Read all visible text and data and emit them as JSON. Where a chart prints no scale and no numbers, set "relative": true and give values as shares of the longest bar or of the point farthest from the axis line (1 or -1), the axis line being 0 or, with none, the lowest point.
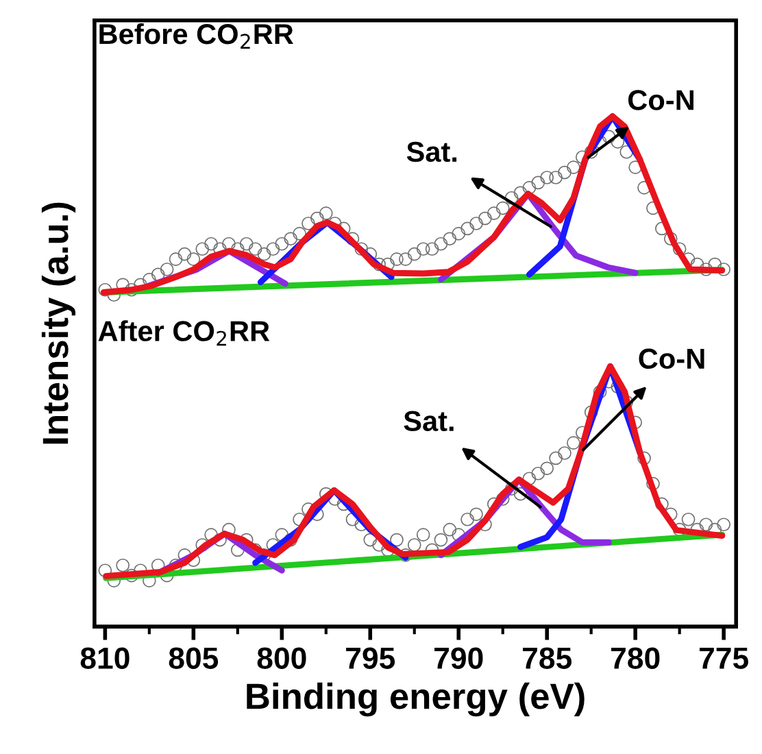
{
  "chart_data": {
    "type": "line",
    "relative": true,
    "xlabel": "Binding energy (eV)",
    "ylabel": "Intensity (a.u.)",
    "xlim": [
      810.6,
      774.3
    ],
    "xticks": [
      810,
      {
        "value": 807.5,
        "label": null
      },
      805,
      {
        "value": 802.5,
        "label": null
      },
      800,
      {
        "value": 797.5,
        "label": null
      },
      795,
      {
        "value": 792.5,
        "label": null
      },
      790,
      {
        "value": 787.5,
        "label": null
      },
      785,
      {
        "value": 782.5,
        "label": null
      },
      780,
      {
        "value": 777.5,
        "label": null
      },
      775
    ],
    "grid": false,
    "legend": false,
    "line_style": "solid",
    "annotations": [
      "Before CO$_{2}$RR",
      "After CO$_{2}$RR",
      {
        "text": "Sat.",
        "x": 784.6,
        "y": 0.78
      },
      {
        "text": "Co-N",
        "x": 782.84,
        "y": 0.915
      },
      {
        "text": "Sat.",
        "x": 785.2,
        "y": 0.23
      },
      {
        "text": "Co-N",
        "x": 783.1,
        "y": 0.341
      }
    ],
    "series": [
      {
        "type": "line",
        "color": "#22c91e",
        "x": [
          810.08,
          775.09
        ],
        "values": [
          0.655,
          0.699
        ]
      },
      {
        "type": "line",
        "color": "#8a2be2",
        "x": [
          807.5,
          804.8,
          802.98,
          801.2,
          799.8
        ],
        "values": [
          0.668,
          0.7,
          0.736,
          0.7,
          0.672
        ]
      },
      {
        "type": "line",
        "color": "#1a1aff",
        "x": [
          801.2,
          798.85,
          797.43,
          795.75,
          793.8
        ],
        "values": [
          0.675,
          0.753,
          0.792,
          0.745,
          0.685
        ]
      },
      {
        "type": "line",
        "color": "#8a2be2",
        "x": [
          791,
          788,
          786.07,
          784.6,
          783.36,
          781.55,
          780
        ],
        "values": [
          0.68,
          0.763,
          0.848,
          0.78,
          0.727,
          0.704,
          0.693
        ]
      },
      {
        "type": "line",
        "color": "#1a1aff",
        "x": [
          786,
          784.26,
          782.84,
          781.29,
          779.74
        ],
        "values": [
          0.69,
          0.745,
          0.915,
          1.0,
          0.915
        ]
      },
      {
        "type": "line",
        "color": "#e8141e",
        "x": [
          810.08,
          808.5,
          807.37,
          806,
          805,
          804,
          802.98,
          802,
          801,
          800.4,
          799.5,
          798.85,
          798,
          797.43,
          796.8,
          795.75,
          794.8,
          793.68,
          792,
          790.58,
          789.5,
          788.0,
          786.97,
          786.07,
          785.3,
          784.26,
          783.5,
          782.84,
          782,
          781.29,
          780.6,
          779.74,
          778.71,
          777.8,
          776.9,
          775.09
        ],
        "values": [
          0.655,
          0.66,
          0.668,
          0.685,
          0.7,
          0.725,
          0.736,
          0.728,
          0.71,
          0.704,
          0.72,
          0.753,
          0.785,
          0.792,
          0.782,
          0.745,
          0.71,
          0.693,
          0.692,
          0.695,
          0.715,
          0.763,
          0.816,
          0.848,
          0.83,
          0.796,
          0.84,
          0.915,
          0.98,
          1.0,
          0.98,
          0.915,
          0.825,
          0.75,
          0.7,
          0.698
        ]
      },
      {
        "type": "scatter",
        "color": "#707070",
        "marker": "circle",
        "x": [
          810,
          809.5,
          809,
          808.5,
          808,
          807.5,
          807,
          806.5,
          806,
          805.5,
          805,
          804.5,
          804,
          803.5,
          803,
          802.5,
          802,
          801.5,
          801,
          800.5,
          800,
          799.5,
          799,
          798.5,
          798,
          797.5,
          797,
          796.5,
          796,
          795.5,
          795,
          794.5,
          794,
          793.5,
          793,
          792.5,
          792,
          791.5,
          791,
          790.5,
          790,
          789.5,
          789,
          788.5,
          788,
          787.5,
          787,
          786.5,
          786,
          785.5,
          785,
          784.5,
          784,
          783.5,
          783,
          782.5,
          782,
          781.5,
          781,
          780.5,
          780,
          779.5,
          779,
          778.5,
          778,
          777.5,
          777,
          776.5,
          776,
          775.5,
          775
        ],
        "values": [
          0.66,
          0.65,
          0.67,
          0.66,
          0.67,
          0.68,
          0.69,
          0.7,
          0.72,
          0.73,
          0.72,
          0.74,
          0.75,
          0.74,
          0.75,
          0.74,
          0.75,
          0.74,
          0.73,
          0.74,
          0.75,
          0.76,
          0.77,
          0.79,
          0.8,
          0.81,
          0.79,
          0.78,
          0.76,
          0.74,
          0.73,
          0.71,
          0.71,
          0.72,
          0.72,
          0.73,
          0.74,
          0.74,
          0.75,
          0.76,
          0.77,
          0.78,
          0.79,
          0.8,
          0.81,
          0.82,
          0.84,
          0.85,
          0.86,
          0.87,
          0.88,
          0.88,
          0.89,
          0.9,
          0.92,
          0.93,
          0.95,
          0.96,
          0.95,
          0.93,
          0.9,
          0.86,
          0.82,
          0.78,
          0.76,
          0.74,
          0.72,
          0.71,
          0.7,
          0.71,
          0.7
        ]
      },
      {
        "type": "line",
        "color": "#22c91e",
        "x": [
          809.95,
          775.09
        ],
        "values": [
          0.095,
          0.18
        ]
      },
      {
        "type": "line",
        "color": "#8a2be2",
        "x": [
          807,
          805,
          803.24,
          801.5,
          800
        ],
        "values": [
          0.105,
          0.14,
          0.182,
          0.14,
          0.11
        ]
      },
      {
        "type": "line",
        "color": "#1a1aff",
        "x": [
          801.5,
          799,
          797.04,
          795,
          793
        ],
        "values": [
          0.125,
          0.19,
          0.267,
          0.19,
          0.135
        ]
      },
      {
        "type": "line",
        "color": "#8a2be2",
        "x": [
          791,
          788.52,
          786.58,
          785.2,
          784.2,
          783,
          781.5
        ],
        "values": [
          0.14,
          0.207,
          0.288,
          0.23,
          0.19,
          0.165,
          0.165
        ]
      },
      {
        "type": "line",
        "color": "#1a1aff",
        "x": [
          786.5,
          785,
          784.2,
          783.1,
          781.42,
          779.74
        ],
        "values": [
          0.156,
          0.175,
          0.21,
          0.341,
          0.51,
          0.341
        ]
      },
      {
        "type": "line",
        "color": "#e8141e",
        "x": [
          809.95,
          806.85,
          805.5,
          804.3,
          803.24,
          802.2,
          801.2,
          800.4,
          799.3,
          798.2,
          797.04,
          796,
          795,
          794,
          793.17,
          790.58,
          789.5,
          788.52,
          787.5,
          786.58,
          785.6,
          784.65,
          783.8,
          783.1,
          782.2,
          781.42,
          780.6,
          779.74,
          778.7,
          777.68,
          775.09
        ],
        "values": [
          0.099,
          0.107,
          0.125,
          0.16,
          0.182,
          0.17,
          0.148,
          0.14,
          0.17,
          0.235,
          0.267,
          0.24,
          0.195,
          0.155,
          0.142,
          0.146,
          0.17,
          0.207,
          0.26,
          0.288,
          0.265,
          0.243,
          0.27,
          0.341,
          0.455,
          0.51,
          0.46,
          0.341,
          0.24,
          0.189,
          0.178
        ]
      },
      {
        "type": "scatter",
        "color": "#707070",
        "marker": "circle",
        "x": [
          810,
          809.5,
          809,
          808.5,
          808,
          807.5,
          807,
          806.5,
          806,
          805.5,
          805,
          804.5,
          804,
          803.5,
          803,
          802.5,
          802,
          801.5,
          801,
          800.5,
          800,
          799.5,
          799,
          798.5,
          798,
          797.5,
          797,
          796.5,
          796,
          795.5,
          795,
          794.5,
          794,
          793.5,
          793,
          792.5,
          792,
          791.5,
          791,
          790.5,
          790,
          789.5,
          789,
          788.5,
          788,
          787.5,
          787,
          786.5,
          786,
          785.5,
          785,
          784.5,
          784,
          783.5,
          783,
          782.5,
          782,
          781.5,
          781,
          780.5,
          780,
          779.5,
          779,
          778.5,
          778,
          777.5,
          777,
          776.5,
          776,
          775.5,
          775
        ],
        "values": [
          0.11,
          0.09,
          0.12,
          0.1,
          0.11,
          0.09,
          0.12,
          0.1,
          0.12,
          0.14,
          0.13,
          0.16,
          0.18,
          0.17,
          0.19,
          0.15,
          0.17,
          0.15,
          0.14,
          0.16,
          0.18,
          0.17,
          0.21,
          0.23,
          0.22,
          0.26,
          0.25,
          0.24,
          0.21,
          0.2,
          0.17,
          0.16,
          0.15,
          0.17,
          0.14,
          0.16,
          0.18,
          0.15,
          0.17,
          0.19,
          0.18,
          0.21,
          0.22,
          0.2,
          0.24,
          0.25,
          0.27,
          0.26,
          0.29,
          0.3,
          0.31,
          0.33,
          0.34,
          0.36,
          0.38,
          0.42,
          0.46,
          0.48,
          0.47,
          0.44,
          0.4,
          0.33,
          0.28,
          0.24,
          0.22,
          0.19,
          0.21,
          0.19,
          0.2,
          0.19,
          0.2
        ]
      }
    ]
  }
}
